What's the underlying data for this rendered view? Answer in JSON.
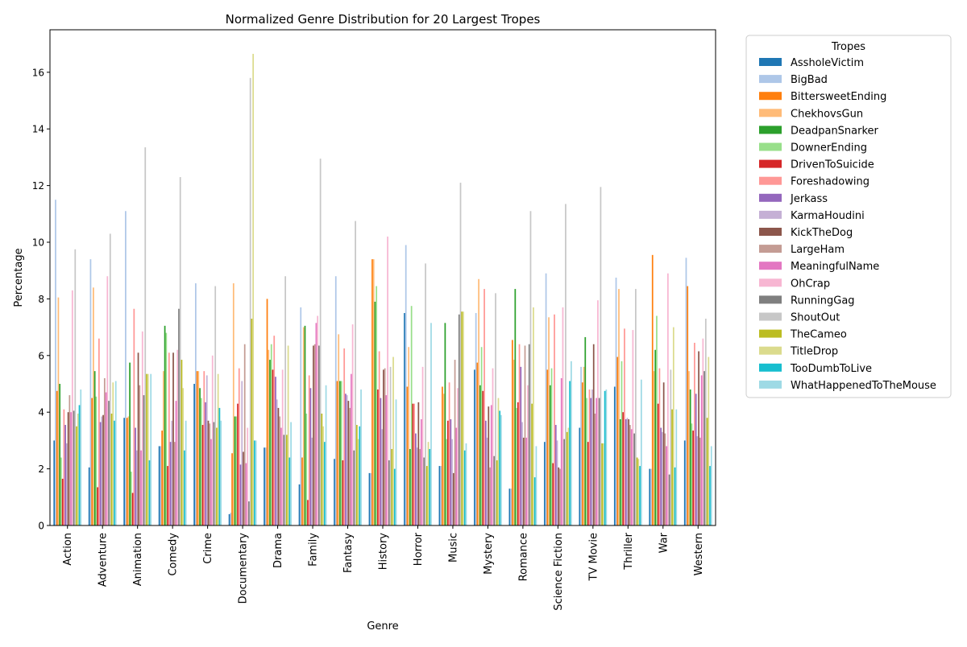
{
  "chart_data": {
    "type": "bar",
    "title": "Normalized Genre Distribution for 20 Largest Tropes",
    "xlabel": "Genre",
    "ylabel": "Percentage",
    "ylim": [
      0,
      17.5
    ],
    "yticks": [
      "0",
      "2",
      "4",
      "6",
      "8",
      "10",
      "12",
      "14",
      "16"
    ],
    "grid": false,
    "legend": {
      "title": "Tropes",
      "placement": "outside-right-top"
    },
    "categories": [
      "Action",
      "Adventure",
      "Animation",
      "Comedy",
      "Crime",
      "Documentary",
      "Drama",
      "Family",
      "Fantasy",
      "History",
      "Horror",
      "Music",
      "Mystery",
      "Romance",
      "Science Fiction",
      "TV Movie",
      "Thriller",
      "War",
      "Western"
    ],
    "series": [
      {
        "name": "AssholeVictim",
        "color": "#1f77b4",
        "values": [
          3.0,
          2.05,
          3.8,
          2.8,
          5.0,
          0.4,
          2.75,
          1.45,
          2.35,
          1.85,
          7.5,
          2.1,
          5.5,
          1.3,
          2.95,
          3.45,
          4.9,
          2.0,
          3.0
        ]
      },
      {
        "name": "BigBad",
        "color": "#aec7e8",
        "values": [
          11.5,
          9.4,
          11.1,
          2.8,
          8.55,
          0.45,
          2.75,
          7.7,
          8.8,
          1.85,
          9.9,
          2.1,
          7.5,
          1.3,
          8.9,
          5.6,
          8.75,
          2.0,
          9.45
        ]
      },
      {
        "name": "BittersweetEnding",
        "color": "#ff7f0e",
        "values": [
          4.75,
          4.5,
          3.8,
          3.35,
          5.45,
          2.55,
          8.0,
          2.4,
          5.1,
          9.4,
          4.9,
          4.9,
          5.75,
          6.55,
          5.5,
          5.05,
          5.95,
          9.55,
          8.45
        ]
      },
      {
        "name": "ChekhovsGun",
        "color": "#ffbb78",
        "values": [
          8.05,
          8.4,
          3.85,
          5.45,
          5.45,
          8.55,
          6.2,
          7.0,
          6.75,
          9.4,
          6.3,
          4.65,
          8.7,
          5.85,
          7.35,
          5.6,
          8.35,
          5.45,
          5.45
        ]
      },
      {
        "name": "DeadpanSnarker",
        "color": "#2ca02c",
        "values": [
          5.0,
          5.45,
          5.75,
          7.05,
          4.85,
          3.85,
          5.85,
          7.05,
          5.1,
          7.9,
          2.7,
          7.15,
          4.95,
          8.35,
          4.95,
          6.65,
          3.75,
          6.2,
          4.8
        ]
      },
      {
        "name": "DownerEnding",
        "color": "#98df8a",
        "values": [
          2.4,
          4.55,
          1.9,
          6.8,
          4.5,
          3.85,
          6.4,
          3.95,
          5.1,
          8.45,
          7.75,
          3.05,
          6.3,
          4.15,
          5.55,
          4.5,
          5.8,
          7.4,
          3.6
        ]
      },
      {
        "name": "DrivenToSuicide",
        "color": "#d62728",
        "values": [
          1.65,
          1.35,
          1.15,
          2.1,
          3.55,
          4.3,
          5.5,
          0.9,
          2.3,
          4.8,
          4.3,
          3.7,
          4.75,
          4.35,
          2.2,
          2.95,
          4.0,
          4.3,
          3.35
        ]
      },
      {
        "name": "Foreshadowing",
        "color": "#ff9896",
        "values": [
          4.1,
          6.6,
          7.65,
          6.1,
          5.45,
          5.55,
          6.7,
          5.3,
          6.25,
          6.15,
          4.3,
          5.05,
          8.35,
          6.4,
          7.45,
          4.8,
          6.95,
          5.55,
          6.45
        ]
      },
      {
        "name": "Jerkass",
        "color": "#9467bd",
        "values": [
          3.55,
          3.65,
          3.45,
          2.95,
          4.35,
          2.15,
          5.25,
          4.85,
          4.65,
          4.5,
          3.25,
          3.75,
          3.7,
          5.6,
          3.55,
          4.5,
          3.75,
          3.45,
          4.65
        ]
      },
      {
        "name": "KarmaHoudini",
        "color": "#c5b0d5",
        "values": [
          2.9,
          3.85,
          2.65,
          3.7,
          5.3,
          5.1,
          4.45,
          3.1,
          4.6,
          3.4,
          2.75,
          3.05,
          3.1,
          3.65,
          3.0,
          4.8,
          3.8,
          3.3,
          3.15
        ]
      },
      {
        "name": "KickTheDog",
        "color": "#8c564b",
        "values": [
          4.0,
          3.9,
          6.1,
          6.1,
          3.7,
          2.6,
          4.15,
          6.35,
          4.4,
          5.5,
          4.35,
          1.85,
          4.2,
          3.1,
          2.05,
          6.4,
          3.75,
          5.05,
          6.15
        ]
      },
      {
        "name": "LargeHam",
        "color": "#c49c94",
        "values": [
          4.6,
          5.2,
          4.95,
          2.95,
          3.6,
          6.4,
          3.85,
          6.4,
          4.15,
          5.55,
          2.7,
          5.85,
          2.05,
          6.35,
          2.0,
          3.95,
          3.55,
          3.25,
          3.1
        ]
      },
      {
        "name": "MeaningfulName",
        "color": "#e377c2",
        "values": [
          4.0,
          4.7,
          2.65,
          4.4,
          3.05,
          2.2,
          3.45,
          7.15,
          5.35,
          4.6,
          3.75,
          3.45,
          4.25,
          3.1,
          5.2,
          4.5,
          3.4,
          2.8,
          5.3
        ]
      },
      {
        "name": "OhCrap",
        "color": "#f7b6d2",
        "values": [
          8.3,
          8.8,
          6.85,
          6.2,
          6.0,
          3.45,
          5.5,
          7.4,
          7.1,
          10.2,
          5.6,
          4.85,
          5.55,
          4.95,
          7.7,
          7.95,
          6.9,
          8.9,
          6.6
        ]
      },
      {
        "name": "RunningGag",
        "color": "#7f7f7f",
        "values": [
          4.05,
          4.4,
          4.6,
          7.65,
          3.65,
          0.85,
          3.2,
          6.35,
          2.65,
          2.3,
          2.4,
          7.45,
          2.45,
          6.4,
          3.05,
          4.5,
          3.25,
          1.8,
          5.45
        ]
      },
      {
        "name": "ShoutOut",
        "color": "#c7c7c7",
        "values": [
          9.75,
          10.3,
          13.35,
          12.3,
          8.45,
          15.8,
          8.8,
          12.95,
          10.75,
          5.6,
          9.25,
          12.1,
          8.2,
          11.1,
          11.35,
          11.95,
          8.35,
          5.5,
          7.3
        ]
      },
      {
        "name": "TheCameo",
        "color": "#bcbd22",
        "values": [
          3.5,
          3.95,
          5.35,
          5.85,
          3.45,
          7.3,
          3.2,
          3.95,
          3.55,
          2.7,
          2.1,
          7.55,
          2.3,
          4.3,
          3.3,
          2.9,
          2.4,
          4.1,
          3.8
        ]
      },
      {
        "name": "TitleDrop",
        "color": "#dbdb8d",
        "values": [
          3.95,
          5.05,
          5.35,
          4.85,
          5.35,
          16.65,
          6.35,
          3.5,
          3.05,
          5.95,
          2.95,
          7.55,
          4.5,
          7.7,
          3.45,
          2.9,
          2.35,
          7.0,
          5.95
        ]
      },
      {
        "name": "TooDumbToLive",
        "color": "#17becf",
        "values": [
          4.25,
          3.7,
          2.3,
          2.65,
          4.15,
          3.0,
          2.4,
          2.95,
          3.5,
          2.0,
          2.7,
          2.65,
          4.05,
          1.7,
          5.1,
          4.75,
          2.1,
          2.05,
          2.1
        ]
      },
      {
        "name": "WhatHappenedToTheMouse",
        "color": "#9edae5",
        "values": [
          4.8,
          5.1,
          5.35,
          3.7,
          3.7,
          3.0,
          3.65,
          4.95,
          4.8,
          4.45,
          7.15,
          2.9,
          3.9,
          2.8,
          5.8,
          4.8,
          5.15,
          4.1,
          2.8
        ]
      }
    ]
  }
}
